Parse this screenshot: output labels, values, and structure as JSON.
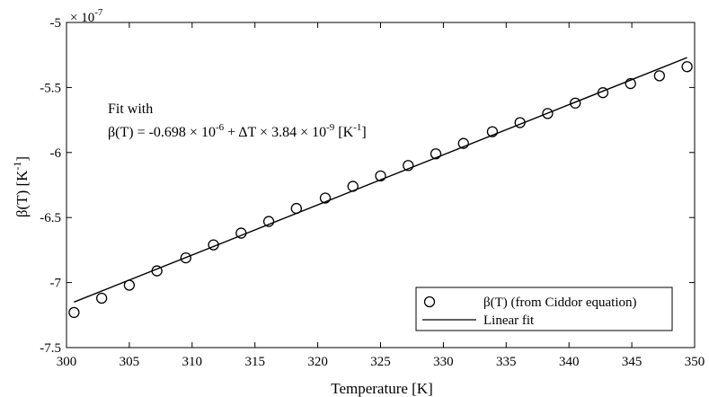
{
  "chart_data": {
    "type": "scatter",
    "xlim": [
      300,
      350
    ],
    "ylim": [
      -7.5,
      -5
    ],
    "y_scale_factor": "× 10",
    "y_scale_exponent": "-7",
    "xticks": [
      300,
      305,
      310,
      315,
      320,
      325,
      330,
      335,
      340,
      345,
      350
    ],
    "yticks": [
      -7.5,
      -7,
      -6.5,
      -6,
      -5.5,
      -5
    ],
    "xlabel": "Temperature [K]",
    "ylabel": "β(T) [K",
    "ylabel_sup": "-1",
    "ylabel_end": "]",
    "grid": false,
    "legend_position": "bottom-right",
    "series": [
      {
        "name": "β(T)  (from Ciddor equation)",
        "kind": "markers",
        "marker": "circle",
        "x": [
          300.6,
          302.8,
          305.0,
          307.2,
          309.5,
          311.7,
          313.9,
          316.1,
          318.3,
          320.6,
          322.8,
          325.0,
          327.2,
          329.4,
          331.6,
          333.9,
          336.1,
          338.3,
          340.5,
          342.7,
          344.9,
          347.2,
          349.4
        ],
        "y": [
          -7.23,
          -7.12,
          -7.02,
          -6.91,
          -6.81,
          -6.71,
          -6.62,
          -6.53,
          -6.43,
          -6.35,
          -6.26,
          -6.18,
          -6.1,
          -6.01,
          -5.93,
          -5.84,
          -5.77,
          -5.7,
          -5.62,
          -5.54,
          -5.47,
          -5.41,
          -5.34
        ]
      },
      {
        "name": "Linear fit",
        "kind": "line",
        "x": [
          300.6,
          349.4
        ],
        "y": [
          -7.15,
          -5.27
        ]
      }
    ],
    "annotation": {
      "line1": "Fit with",
      "line2_parts": {
        "lhs": "β(T) = -0.698 × 10",
        "exp1": "-6",
        "mid": " + ΔT × 3.84 × 10",
        "exp2": "-9",
        "unit": " [K",
        "exp3": "-1",
        "end": "]"
      }
    }
  }
}
